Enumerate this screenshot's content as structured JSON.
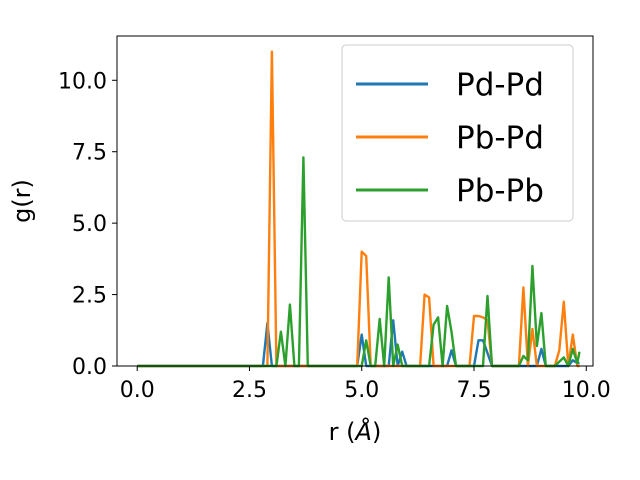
{
  "chart_data": {
    "type": "line",
    "xlabel": "r (",
    "xlabel_unit": "Å",
    "xlabel_close": ")",
    "ylabel": "g(r)",
    "xlim": [
      -0.45,
      10.15
    ],
    "ylim": [
      0,
      11.55
    ],
    "x_ticks": [
      0.0,
      2.5,
      5.0,
      7.5,
      10.0
    ],
    "x_tick_labels": [
      "0.0",
      "2.5",
      "5.0",
      "7.5",
      "10.0"
    ],
    "y_ticks": [
      0.0,
      2.5,
      5.0,
      7.5,
      10.0
    ],
    "y_tick_labels": [
      "0.0",
      "2.5",
      "5.0",
      "7.5",
      "10.0"
    ],
    "grid": false,
    "legend_position": "top-right",
    "series": [
      {
        "name": "Pd-Pd",
        "color": "#1f77b4",
        "x": [
          0.0,
          2.7,
          2.8,
          2.9,
          3.0,
          3.1,
          4.8,
          4.9,
          5.0,
          5.1,
          5.6,
          5.7,
          5.8,
          5.9,
          6.0,
          6.9,
          7.0,
          7.1,
          7.5,
          7.6,
          7.7,
          7.8,
          7.9,
          8.0,
          8.1,
          8.8,
          8.9,
          9.0,
          9.1,
          9.2,
          9.6,
          9.7,
          9.8,
          9.85
        ],
        "y": [
          0.0,
          0.0,
          0.0,
          1.5,
          0.0,
          0.0,
          0.0,
          0.0,
          1.1,
          0.0,
          0.0,
          1.6,
          0.0,
          0.5,
          0.0,
          0.0,
          0.55,
          0.0,
          0.0,
          0.9,
          0.9,
          0.45,
          0.0,
          0.0,
          0.0,
          0.0,
          0.0,
          0.6,
          0.0,
          0.0,
          0.0,
          0.2,
          0.1,
          0.1
        ]
      },
      {
        "name": "Pb-Pd",
        "color": "#ff7f0e",
        "x": [
          0.0,
          2.9,
          3.0,
          3.1,
          3.2,
          3.3,
          4.9,
          5.0,
          5.1,
          5.2,
          5.3,
          6.3,
          6.4,
          6.5,
          6.6,
          7.4,
          7.5,
          7.6,
          7.7,
          7.8,
          7.9,
          8.5,
          8.6,
          8.7,
          8.8,
          8.9,
          9.3,
          9.4,
          9.5,
          9.6,
          9.7,
          9.8,
          9.85
        ],
        "y": [
          0.0,
          0.0,
          11.0,
          0.0,
          0.0,
          0.0,
          0.0,
          4.0,
          3.85,
          0.0,
          0.0,
          0.0,
          2.5,
          2.4,
          0.0,
          0.0,
          1.75,
          1.75,
          1.7,
          1.6,
          0.0,
          0.0,
          2.75,
          0.0,
          1.3,
          0.0,
          0.0,
          0.55,
          2.25,
          0.0,
          1.1,
          0.0,
          0.0
        ]
      },
      {
        "name": "Pb-Pb",
        "color": "#2ca02c",
        "x": [
          0.0,
          3.1,
          3.2,
          3.3,
          3.4,
          3.5,
          3.6,
          3.7,
          3.8,
          3.9,
          4.9,
          5.0,
          5.1,
          5.2,
          5.3,
          5.4,
          5.5,
          5.6,
          5.7,
          5.8,
          5.9,
          6.0,
          6.5,
          6.6,
          6.7,
          6.8,
          6.9,
          7.0,
          7.1,
          7.6,
          7.7,
          7.8,
          7.9,
          8.0,
          8.5,
          8.6,
          8.7,
          8.8,
          8.9,
          9.0,
          9.1,
          9.2,
          9.3,
          9.5,
          9.6,
          9.7,
          9.8,
          9.85
        ],
        "y": [
          0.0,
          0.0,
          1.2,
          0.0,
          2.15,
          0.0,
          0.0,
          7.3,
          0.0,
          0.0,
          0.0,
          0.0,
          0.9,
          0.0,
          0.0,
          1.65,
          0.0,
          3.1,
          0.0,
          0.75,
          0.0,
          0.0,
          0.0,
          1.45,
          1.7,
          0.0,
          2.1,
          1.2,
          0.0,
          0.0,
          0.0,
          2.45,
          0.0,
          0.0,
          0.0,
          0.35,
          0.2,
          3.5,
          0.7,
          1.85,
          0.0,
          0.0,
          0.0,
          0.3,
          0.0,
          0.6,
          0.1,
          0.5
        ]
      }
    ]
  }
}
